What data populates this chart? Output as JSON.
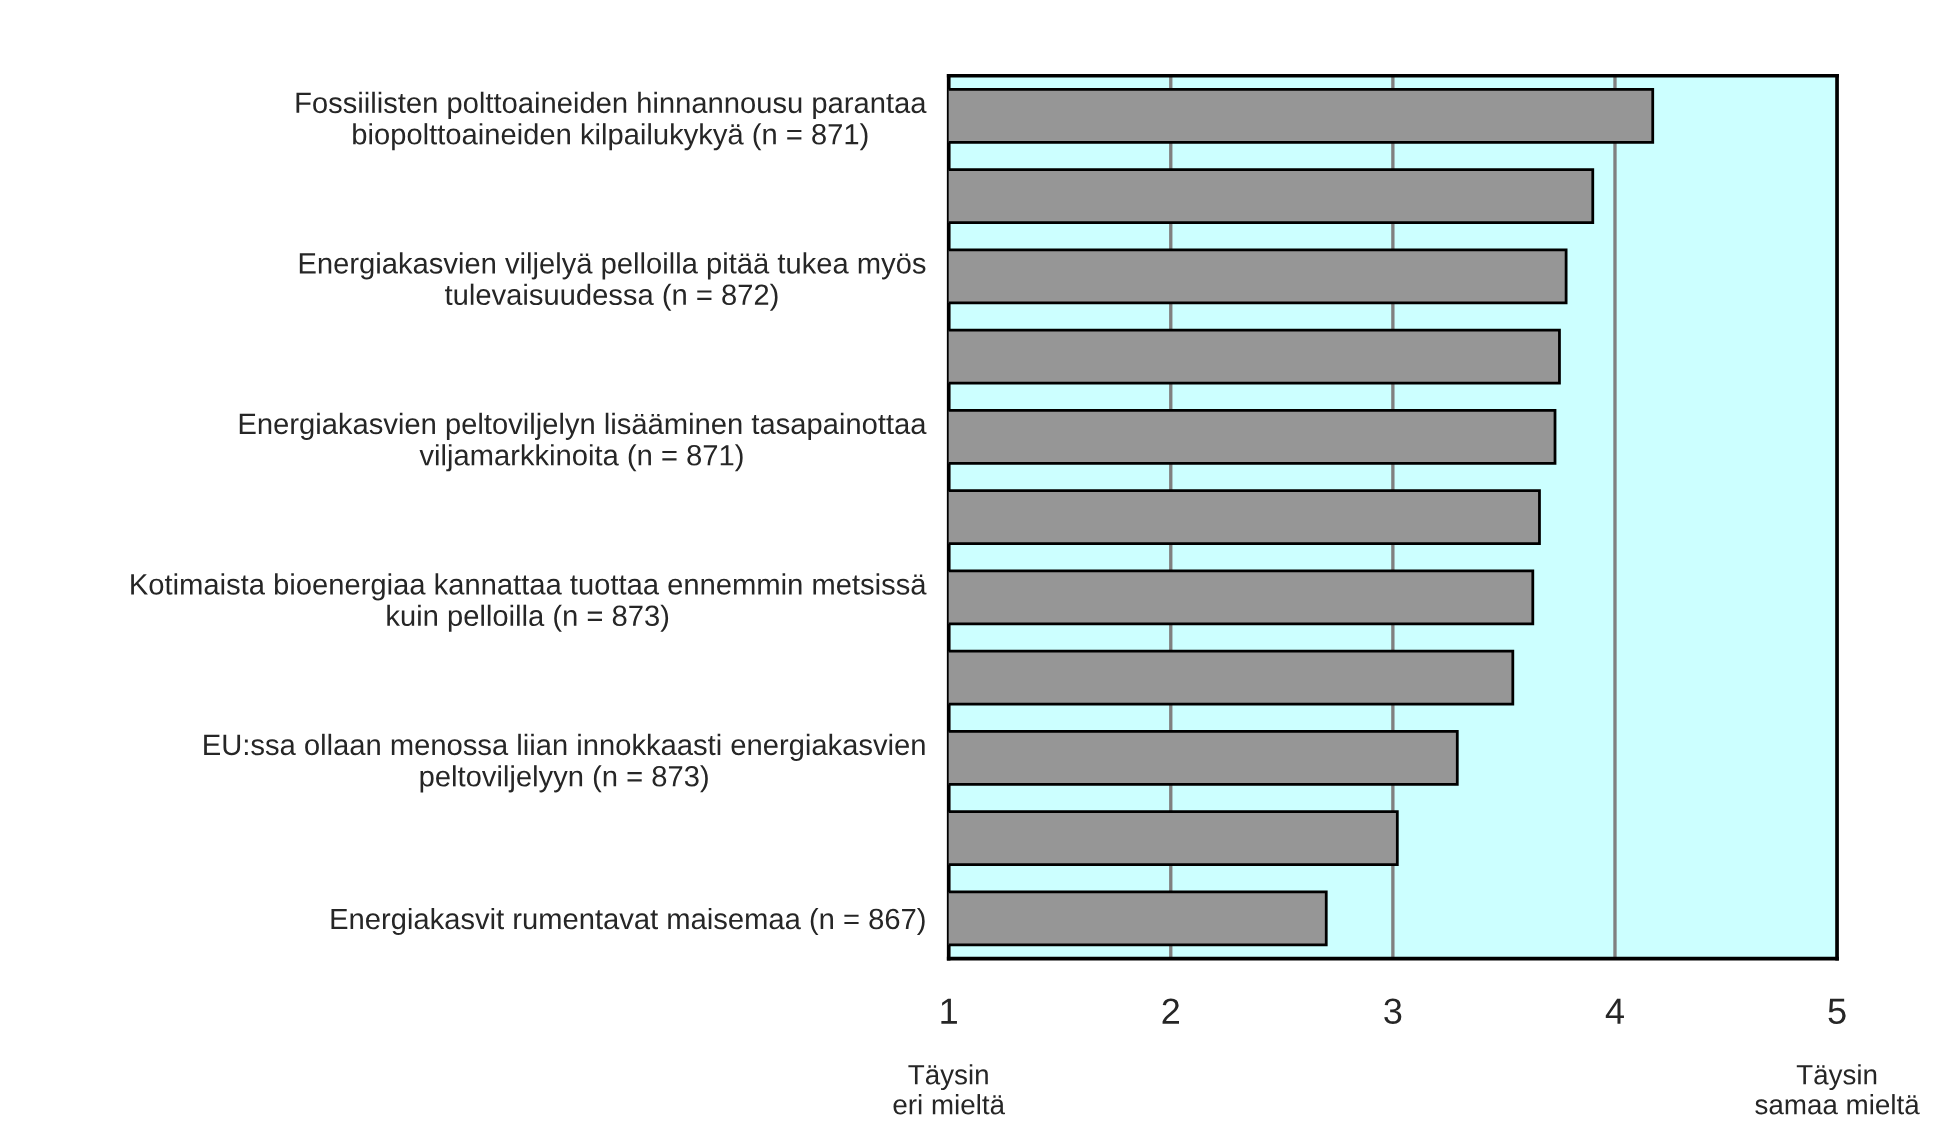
{
  "chart_data": {
    "type": "bar",
    "orientation": "horizontal",
    "categories": [
      "Fossiilisten polttoaineiden hinnannousu parantaa\nbiopolttoaineiden kilpailukykyä (n = 871)",
      null,
      "Energiakasvien viljelyä pelloilla pitää tukea myös\ntulevaisuudessa (n = 872)",
      null,
      "Energiakasvien peltoviljelyn lisääminen tasapainottaa\nviljamarkkinoita (n = 871)",
      null,
      "Kotimaista bioenergiaa kannattaa tuottaa ennemmin metsissä\nkuin pelloilla (n = 873)",
      null,
      "EU:ssa ollaan menossa liian innokkaasti energiakasvien\npeltoviljelyyn (n = 873)",
      null,
      "Energiakasvit rumentavat maisemaa (n = 867)"
    ],
    "values": [
      4.17,
      3.9,
      3.78,
      3.75,
      3.73,
      3.66,
      3.63,
      3.54,
      3.29,
      3.02,
      2.7
    ],
    "color": "#969696",
    "bands": [
      {
        "axis": "x",
        "from": 1,
        "to": 5,
        "color": "#ccffff"
      }
    ],
    "xlim": [
      1,
      5
    ],
    "xticks": [
      1,
      2,
      3,
      4,
      5
    ],
    "grid": "x",
    "annotations": [
      "Täysin\neri mieltä",
      "Täysin\nsamaa mieltä"
    ]
  }
}
